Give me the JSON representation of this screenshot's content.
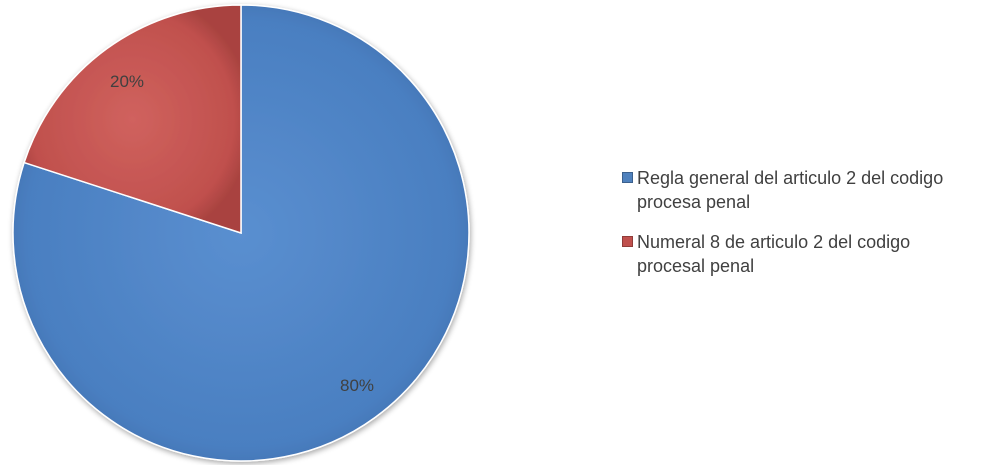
{
  "chart_data": {
    "type": "pie",
    "start_angle_deg": 0,
    "direction": "counterclockwise-from-top-for-smaller-slice",
    "series": [
      {
        "values": [
          80,
          20
        ],
        "data_labels": [
          "80%",
          "20%"
        ]
      }
    ],
    "categories": [
      "Regla general del articulo 2 del codigo procesa penal",
      "Numeral 8 de articulo 2 del codigo procesal penal"
    ],
    "colors": [
      "#4f81bd",
      "#c0504d"
    ],
    "legend_placement": "right"
  },
  "legend": {
    "items": [
      {
        "label": "Regla general del articulo 2 del codigo procesa penal",
        "color": "#4f81bd"
      },
      {
        "label": "Numeral 8 de articulo 2 del codigo procesal penal",
        "color": "#c0504d"
      }
    ]
  }
}
